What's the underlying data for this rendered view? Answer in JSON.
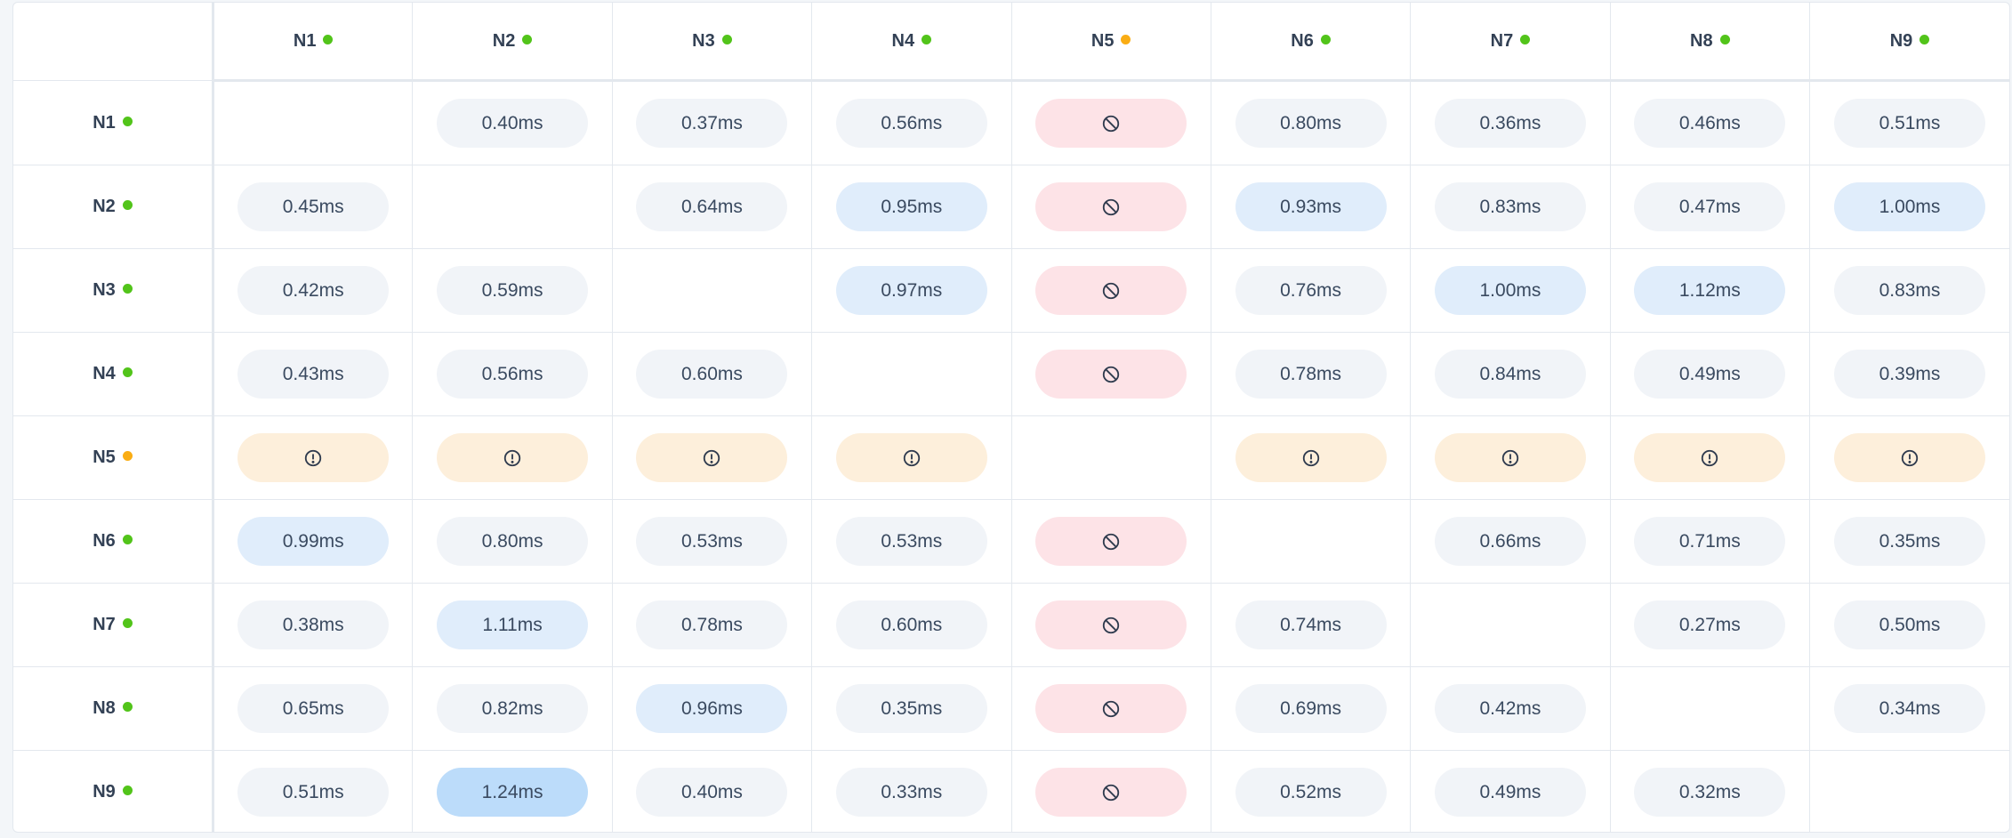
{
  "nodes": [
    {
      "label": "N1",
      "status": "ok"
    },
    {
      "label": "N2",
      "status": "ok"
    },
    {
      "label": "N3",
      "status": "ok"
    },
    {
      "label": "N4",
      "status": "ok"
    },
    {
      "label": "N5",
      "status": "warning"
    },
    {
      "label": "N6",
      "status": "ok"
    },
    {
      "label": "N7",
      "status": "ok"
    },
    {
      "label": "N8",
      "status": "ok"
    },
    {
      "label": "N9",
      "status": "ok"
    }
  ],
  "status_colors": {
    "ok": "#52c41a",
    "warning": "#faad14"
  },
  "cell_icons": {
    "blocked": "ban-icon",
    "warning": "exclamation-circle-icon"
  },
  "matrix": [
    [
      "",
      "0.40ms",
      "0.37ms",
      "0.56ms",
      "blocked",
      "0.80ms",
      "0.36ms",
      "0.46ms",
      "0.51ms"
    ],
    [
      "0.45ms",
      "",
      "0.64ms",
      "0.95ms",
      "blocked",
      "0.93ms",
      "0.83ms",
      "0.47ms",
      "1.00ms"
    ],
    [
      "0.42ms",
      "0.59ms",
      "",
      "0.97ms",
      "blocked",
      "0.76ms",
      "1.00ms",
      "1.12ms",
      "0.83ms"
    ],
    [
      "0.43ms",
      "0.56ms",
      "0.60ms",
      "",
      "blocked",
      "0.78ms",
      "0.84ms",
      "0.49ms",
      "0.39ms"
    ],
    [
      "warning",
      "warning",
      "warning",
      "warning",
      "",
      "warning",
      "warning",
      "warning",
      "warning"
    ],
    [
      "0.99ms",
      "0.80ms",
      "0.53ms",
      "0.53ms",
      "blocked",
      "",
      "0.66ms",
      "0.71ms",
      "0.35ms"
    ],
    [
      "0.38ms",
      "1.11ms",
      "0.78ms",
      "0.60ms",
      "blocked",
      "0.74ms",
      "",
      "0.27ms",
      "0.50ms"
    ],
    [
      "0.65ms",
      "0.82ms",
      "0.96ms",
      "0.35ms",
      "blocked",
      "0.69ms",
      "0.42ms",
      "",
      "0.34ms"
    ],
    [
      "0.51ms",
      "1.24ms",
      "0.40ms",
      "0.33ms",
      "blocked",
      "0.52ms",
      "0.49ms",
      "0.32ms",
      ""
    ]
  ]
}
